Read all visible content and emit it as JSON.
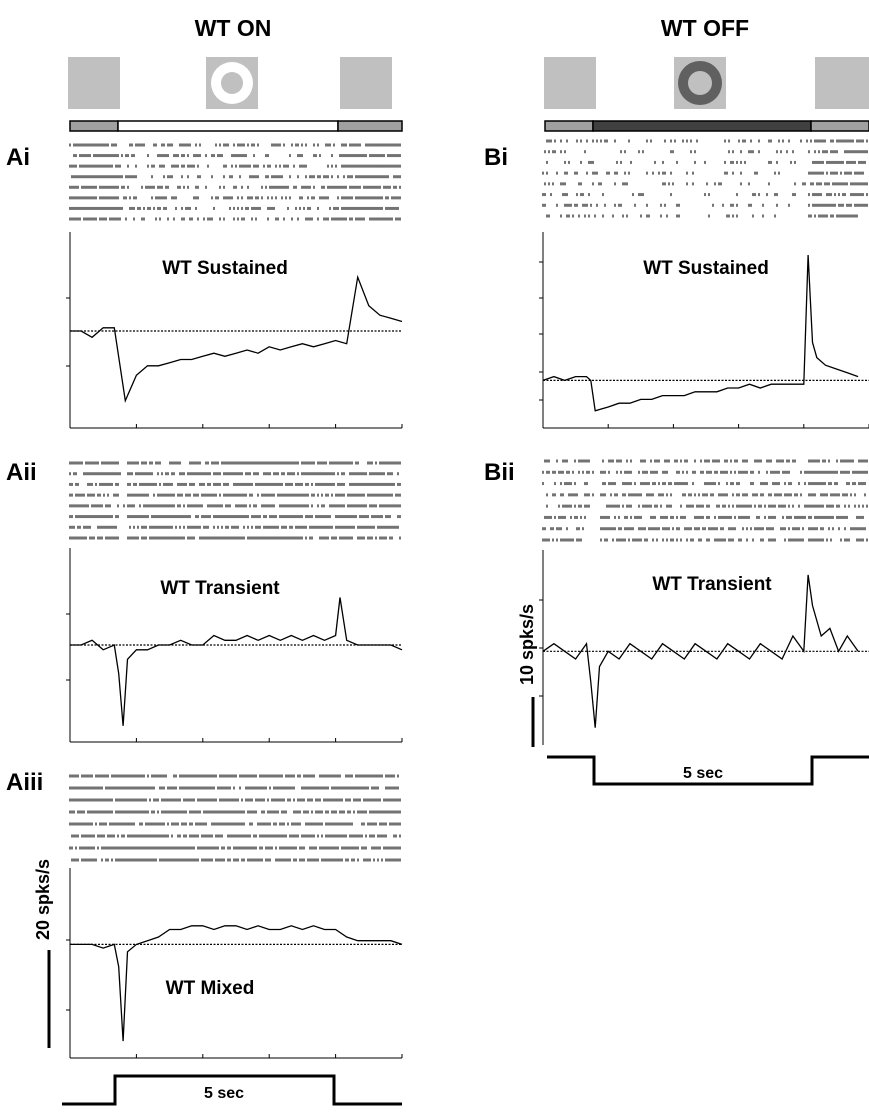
{
  "column_titles": [
    "WT ON",
    "WT OFF"
  ],
  "panel_labels": [
    "Ai",
    "Aii",
    "Aiii",
    "Bi",
    "Bii"
  ],
  "trace_titles": [
    "WT Sustained",
    "WT Transient",
    "WT Mixed",
    "WT Sustained",
    "WT Transient"
  ],
  "scale_bars": [
    "20 spks/s",
    "10 spks/s"
  ],
  "time_labels": [
    "5 sec",
    "5 sec"
  ],
  "colors": {
    "background_gray": "#c0c0c0",
    "off_spot": "#606060",
    "ink": "#000000"
  },
  "chart_data": [
    {
      "type": "line",
      "panel": "Ai",
      "title": "WT Sustained",
      "stimulus": "ON",
      "raster_trials": 8,
      "x_seconds": [
        0,
        0.25,
        0.5,
        0.75,
        1,
        1.25,
        1.5,
        1.75,
        2,
        2.25,
        2.5,
        2.75,
        3,
        3.25,
        3.5,
        3.75,
        4,
        4.25,
        4.5,
        4.75,
        5,
        5.25,
        5.5,
        5.75,
        6,
        6.25,
        6.5,
        6.75,
        7,
        7.25,
        7.5
      ],
      "y_spks_per_s": [
        30,
        30,
        28,
        31,
        31,
        8,
        16,
        19,
        19,
        20,
        21,
        21,
        22,
        23,
        22,
        23,
        24,
        23,
        25,
        24,
        25,
        26,
        25,
        26,
        27,
        26,
        47,
        38,
        35,
        34,
        33
      ],
      "baseline": 30,
      "stimulus_on_interval_s": [
        1.1,
        6.1
      ]
    },
    {
      "type": "line",
      "panel": "Aii",
      "title": "WT Transient",
      "stimulus": "ON",
      "raster_trials": 8,
      "x_seconds": [
        0,
        0.25,
        0.5,
        0.75,
        1,
        1.1,
        1.2,
        1.3,
        1.5,
        1.75,
        2,
        2.25,
        2.5,
        2.75,
        3,
        3.25,
        3.5,
        3.75,
        4,
        4.25,
        4.5,
        4.75,
        5,
        5.25,
        5.5,
        5.75,
        6,
        6.1,
        6.25,
        6.5,
        6.75,
        7,
        7.25,
        7.5
      ],
      "y_spks_per_s": [
        20,
        20,
        21,
        19,
        20,
        14,
        3,
        17,
        19,
        19,
        20,
        20,
        21,
        20,
        20,
        22,
        21,
        21,
        22,
        21,
        22,
        21,
        22,
        21,
        22,
        21,
        22,
        30,
        21,
        20,
        20,
        20,
        20,
        19
      ],
      "baseline": 20,
      "stimulus_on_interval_s": [
        1.1,
        6.1
      ]
    },
    {
      "type": "line",
      "panel": "Aiii",
      "title": "WT Mixed",
      "stimulus": "ON",
      "raster_trials": 8,
      "x_seconds": [
        0,
        0.25,
        0.5,
        0.75,
        1,
        1.1,
        1.2,
        1.3,
        1.5,
        1.75,
        2,
        2.25,
        2.5,
        2.75,
        3,
        3.25,
        3.5,
        3.75,
        4,
        4.25,
        4.5,
        4.75,
        5,
        5.25,
        5.5,
        5.75,
        6,
        6.25,
        6.5,
        6.75,
        7,
        7.25,
        7.5
      ],
      "y_spks_per_s": [
        30,
        30,
        30,
        29,
        30,
        24,
        4,
        28,
        30,
        31,
        32,
        34,
        34,
        35,
        35,
        34,
        35,
        35,
        34,
        35,
        34,
        34,
        35,
        34,
        35,
        34,
        34,
        32,
        31,
        31,
        31,
        31,
        30
      ],
      "baseline": 30,
      "stimulus_on_interval_s": [
        1.1,
        6.1
      ]
    },
    {
      "type": "line",
      "panel": "Bi",
      "title": "WT Sustained",
      "stimulus": "OFF",
      "raster_trials": 8,
      "x_seconds": [
        0,
        0.25,
        0.5,
        0.75,
        1,
        1.1,
        1.2,
        1.5,
        1.75,
        2,
        2.25,
        2.5,
        2.75,
        3,
        3.25,
        3.5,
        3.75,
        4,
        4.25,
        4.5,
        4.75,
        5,
        5.25,
        5.5,
        5.75,
        6,
        6.1,
        6.2,
        6.3,
        6.5,
        6.75,
        7,
        7.25
      ],
      "y_spks_per_s": [
        12,
        13,
        12,
        13,
        13,
        12,
        4,
        5,
        6,
        6,
        7,
        7,
        8,
        8,
        8,
        9,
        9,
        9,
        10,
        10,
        11,
        10,
        11,
        11,
        11,
        11,
        45,
        22,
        18,
        16,
        15,
        14,
        13
      ],
      "baseline": 12,
      "stimulus_off_interval_s": [
        1.1,
        6.1
      ]
    },
    {
      "type": "line",
      "panel": "Bii",
      "title": "WT Transient",
      "stimulus": "OFF",
      "raster_trials": 8,
      "x_seconds": [
        0,
        0.25,
        0.5,
        0.75,
        1,
        1.1,
        1.2,
        1.3,
        1.5,
        1.75,
        2,
        2.25,
        2.5,
        2.75,
        3,
        3.25,
        3.5,
        3.75,
        4,
        4.25,
        4.5,
        4.75,
        5,
        5.25,
        5.5,
        5.75,
        6,
        6.1,
        6.2,
        6.4,
        6.6,
        6.8,
        7,
        7.25
      ],
      "y_spks_per_s": [
        12,
        13,
        12,
        11,
        13,
        8,
        2,
        10,
        12,
        11,
        13,
        12,
        11,
        13,
        12,
        11,
        13,
        12,
        11,
        13,
        12,
        11,
        13,
        12,
        11,
        14,
        12,
        22,
        18,
        14,
        15,
        12,
        14,
        12
      ],
      "baseline": 12,
      "stimulus_off_interval_s": [
        1.1,
        6.1
      ]
    }
  ]
}
